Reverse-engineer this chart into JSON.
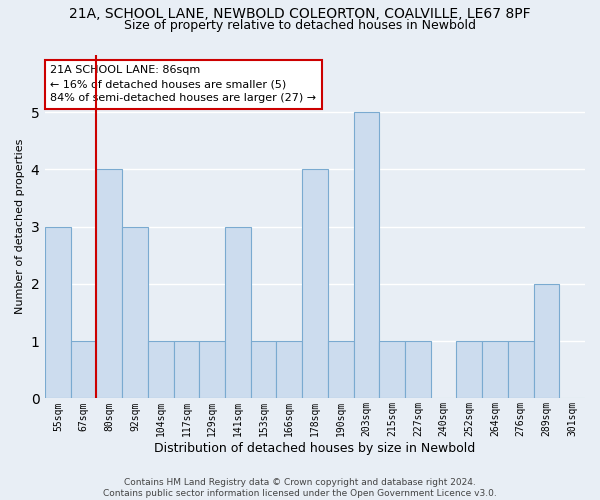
{
  "title_line1": "21A, SCHOOL LANE, NEWBOLD COLEORTON, COALVILLE, LE67 8PF",
  "title_line2": "Size of property relative to detached houses in Newbold",
  "xlabel": "Distribution of detached houses by size in Newbold",
  "ylabel": "Number of detached properties",
  "categories": [
    "55sqm",
    "67sqm",
    "80sqm",
    "92sqm",
    "104sqm",
    "117sqm",
    "129sqm",
    "141sqm",
    "153sqm",
    "166sqm",
    "178sqm",
    "190sqm",
    "203sqm",
    "215sqm",
    "227sqm",
    "240sqm",
    "252sqm",
    "264sqm",
    "276sqm",
    "289sqm",
    "301sqm"
  ],
  "values": [
    3,
    1,
    4,
    3,
    1,
    1,
    1,
    3,
    1,
    1,
    4,
    1,
    5,
    1,
    1,
    0,
    1,
    1,
    1,
    2,
    0
  ],
  "bar_color": "#ccdcee",
  "bar_edge_color": "#7aaad0",
  "annotation_text": "21A SCHOOL LANE: 86sqm\n← 16% of detached houses are smaller (5)\n84% of semi-detached houses are larger (27) →",
  "reference_line_x": 1.5,
  "ref_line_color": "#cc0000",
  "annotation_box_color": "#ffffff",
  "annotation_box_edge_color": "#cc0000",
  "ylim": [
    0,
    6
  ],
  "yticks": [
    0,
    1,
    2,
    3,
    4,
    5,
    6
  ],
  "footnote": "Contains HM Land Registry data © Crown copyright and database right 2024.\nContains public sector information licensed under the Open Government Licence v3.0.",
  "background_color": "#e8eef5",
  "grid_color": "#ffffff",
  "title1_fontsize": 10,
  "title2_fontsize": 9,
  "xlabel_fontsize": 9,
  "ylabel_fontsize": 8,
  "footnote_fontsize": 6.5,
  "annotation_fontsize": 8,
  "tick_fontsize": 7
}
